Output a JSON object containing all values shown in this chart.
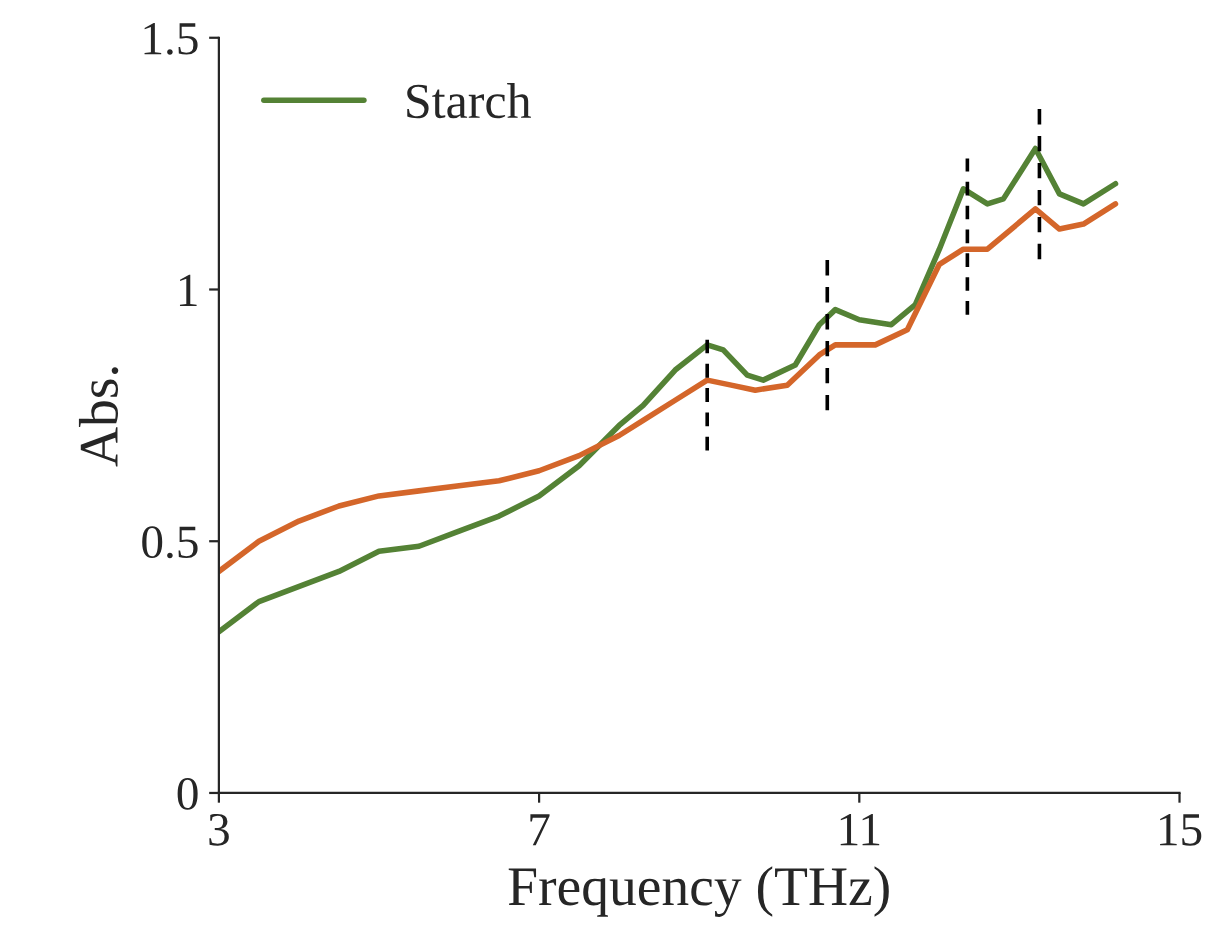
{
  "chart_data": {
    "type": "line",
    "xlabel": "Frequency (THz)",
    "ylabel": "Abs.",
    "xlim": [
      3,
      15
    ],
    "xticks": [
      3,
      7,
      11,
      15
    ],
    "ylim": [
      0,
      1.5
    ],
    "yticks": [
      0,
      {
        "value": 0.5,
        "label": "0.5"
      },
      1,
      {
        "value": 1.5,
        "label": "1.5"
      }
    ],
    "grid": false,
    "legend": "top left",
    "series": [
      {
        "name": "Starch",
        "color": "#548235",
        "x": [
          3,
          3.5,
          4.5,
          5,
          5.5,
          6,
          6.5,
          7,
          7.5,
          8,
          8.3,
          8.7,
          9.1,
          9.3,
          9.6,
          9.8,
          10.2,
          10.5,
          10.7,
          11,
          11.4,
          11.7,
          12,
          12.3,
          12.6,
          12.8,
          13.2,
          13.5,
          13.8,
          14.2
        ],
        "values": [
          0.32,
          0.38,
          0.44,
          0.48,
          0.49,
          0.52,
          0.55,
          0.59,
          0.65,
          0.73,
          0.77,
          0.84,
          0.89,
          0.88,
          0.83,
          0.82,
          0.85,
          0.93,
          0.96,
          0.94,
          0.93,
          0.97,
          1.08,
          1.2,
          1.17,
          1.18,
          1.28,
          1.19,
          1.17,
          1.21
        ]
      },
      {
        "color": "#d4662a",
        "x": [
          3,
          3.5,
          4,
          4.5,
          5,
          5.5,
          6,
          6.5,
          7,
          7.5,
          8,
          8.3,
          8.7,
          9.1,
          9.4,
          9.7,
          10.1,
          10.5,
          10.7,
          11.2,
          11.6,
          12,
          12.3,
          12.6,
          12.9,
          13.2,
          13.5,
          13.8,
          14.2
        ],
        "values": [
          0.44,
          0.5,
          0.54,
          0.57,
          0.59,
          0.6,
          0.61,
          0.62,
          0.64,
          0.67,
          0.71,
          0.74,
          0.78,
          0.82,
          0.81,
          0.8,
          0.81,
          0.87,
          0.89,
          0.89,
          0.92,
          1.05,
          1.08,
          1.08,
          1.12,
          1.16,
          1.12,
          1.13,
          1.17
        ]
      },
      {
        "color": "#000000",
        "line_style": "dashed",
        "x": [
          9.1,
          9.1
        ],
        "values": [
          0.68,
          0.9
        ]
      },
      {
        "color": "#000000",
        "line_style": "dashed",
        "x": [
          10.6,
          10.6
        ],
        "values": [
          0.76,
          1.06
        ]
      },
      {
        "color": "#000000",
        "line_style": "dashed",
        "x": [
          12.35,
          12.35
        ],
        "values": [
          0.95,
          1.26
        ]
      },
      {
        "color": "#000000",
        "line_style": "dashed",
        "x": [
          13.25,
          13.25
        ],
        "values": [
          1.06,
          1.36
        ]
      }
    ]
  }
}
